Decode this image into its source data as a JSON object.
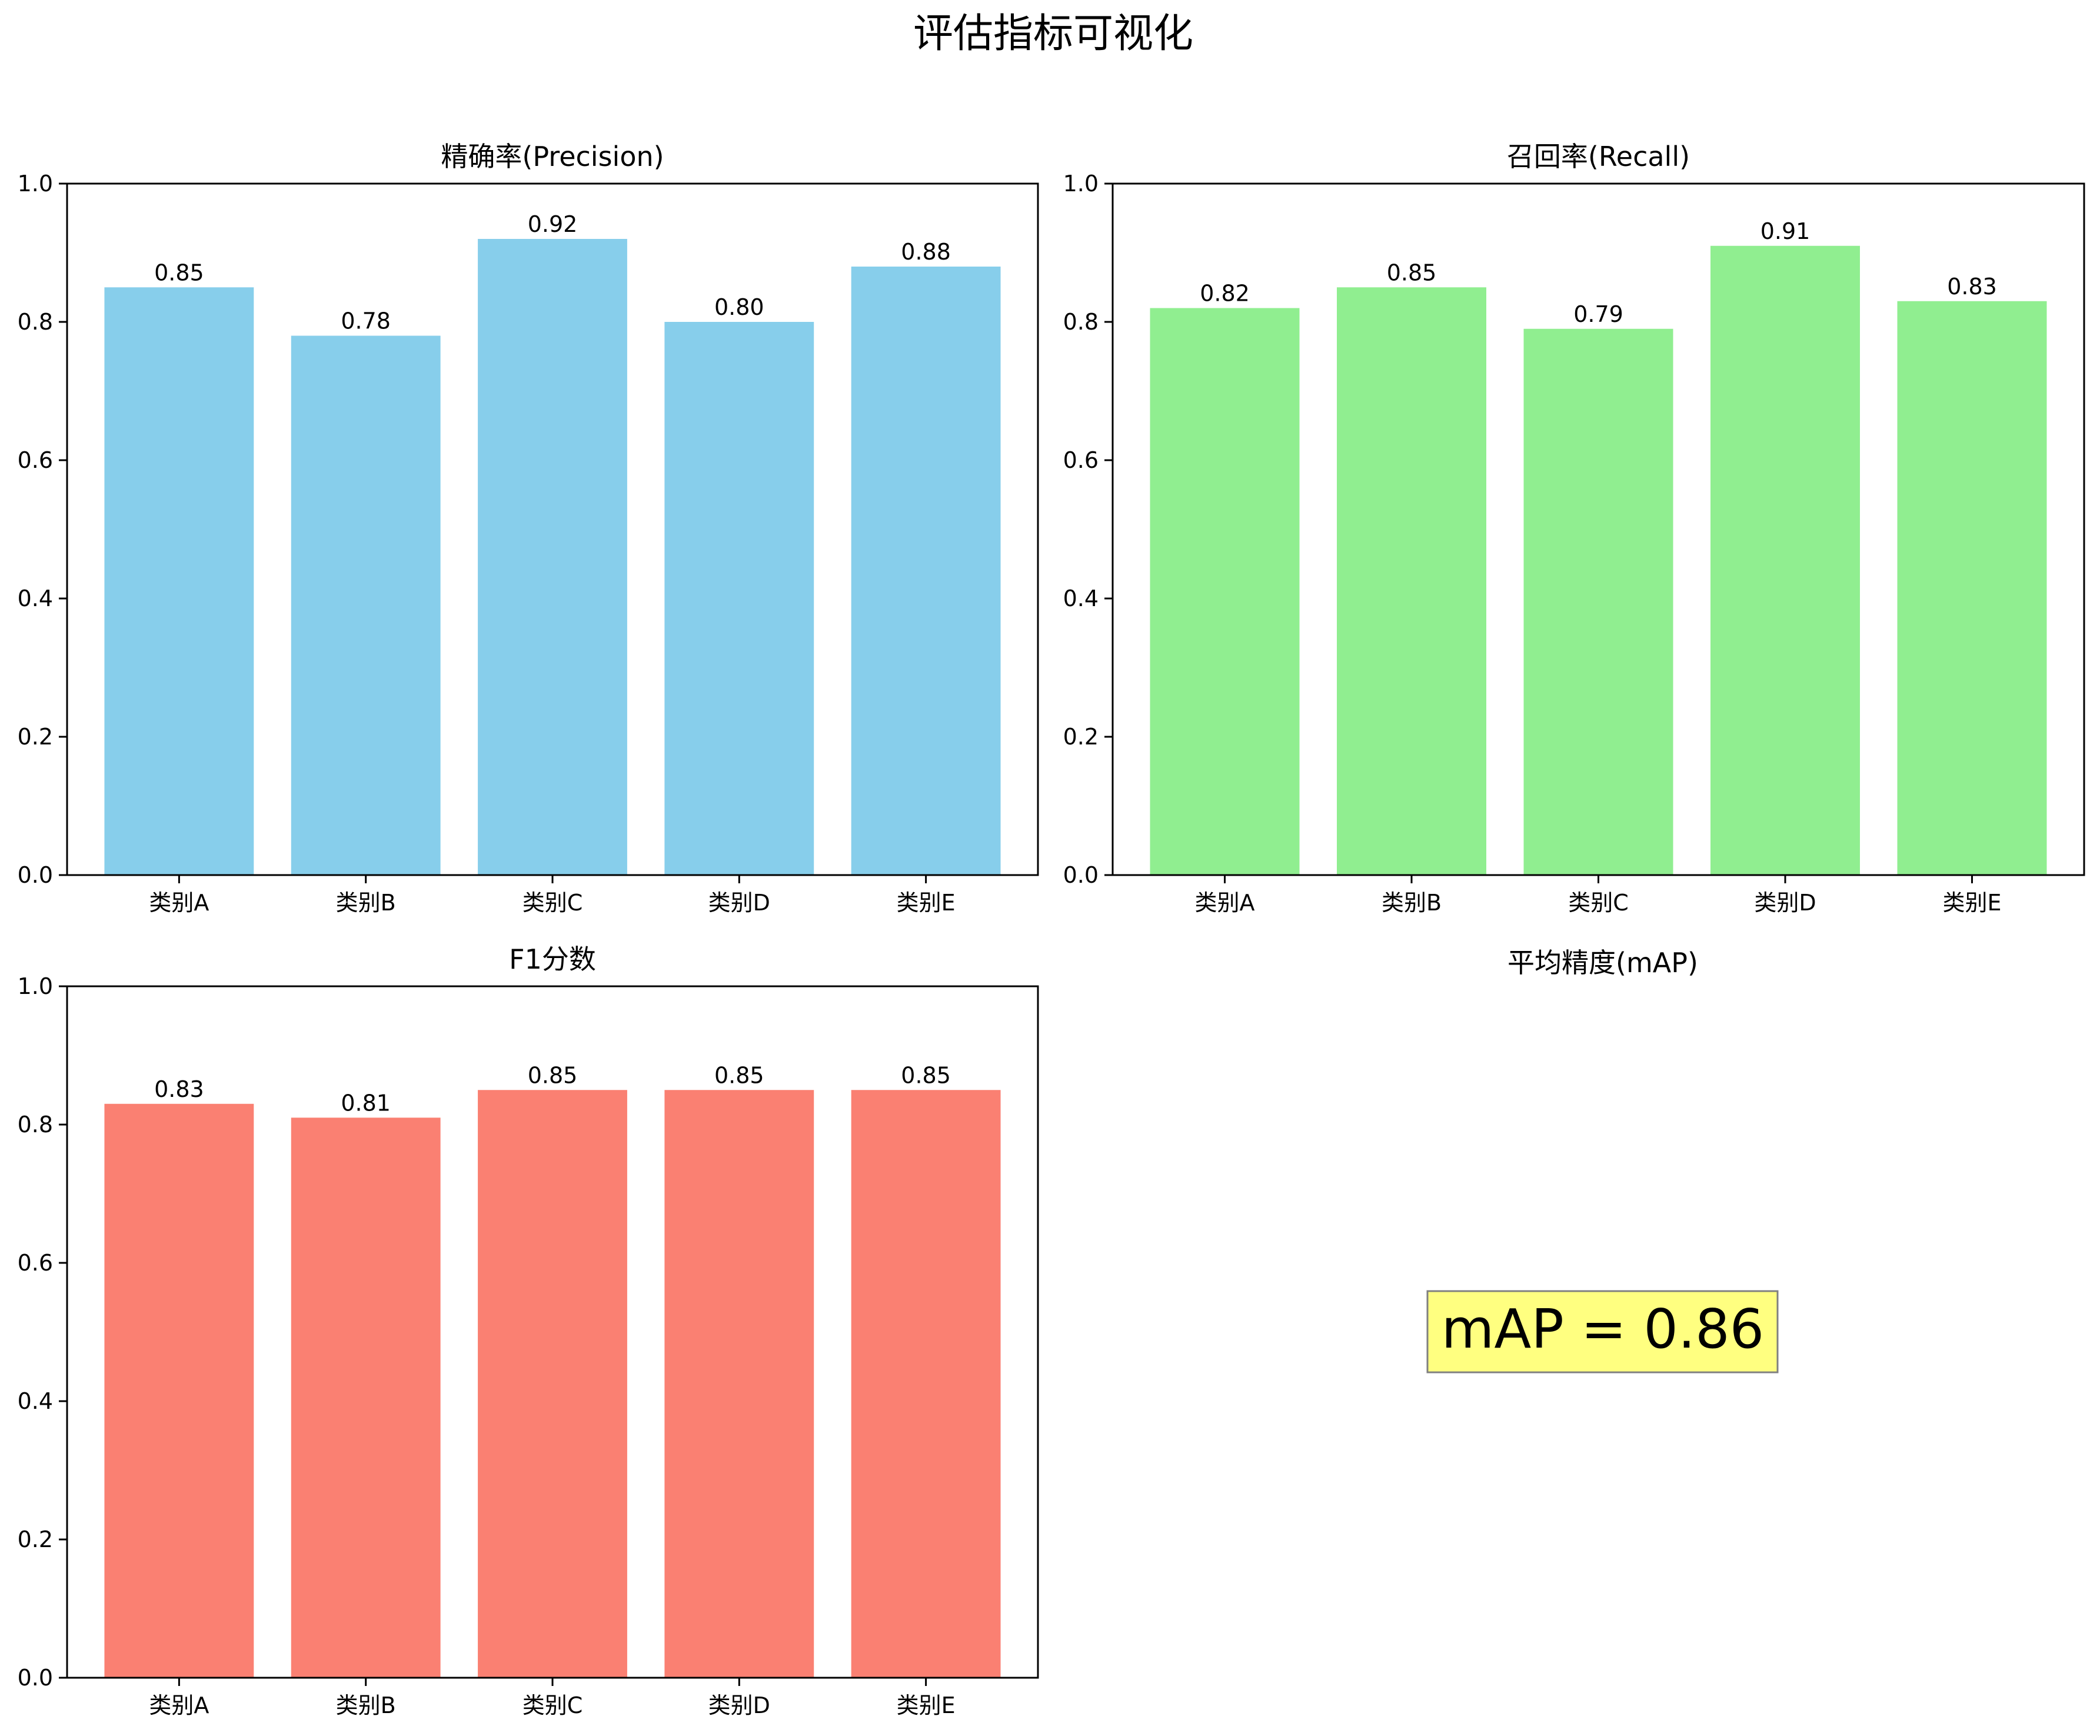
{
  "figure": {
    "suptitle": "评估指标可视化"
  },
  "chart_data": [
    {
      "type": "bar",
      "title": "精确率(Precision)",
      "xlabel": "",
      "ylabel": "",
      "categories": [
        "类别A",
        "类别B",
        "类别C",
        "类别D",
        "类别E"
      ],
      "values": [
        0.85,
        0.78,
        0.92,
        0.8,
        0.88
      ],
      "value_labels": [
        "0.85",
        "0.78",
        "0.92",
        "0.80",
        "0.88"
      ],
      "ylim": [
        0,
        1.0
      ],
      "yticks": [
        "0.0",
        "0.2",
        "0.4",
        "0.6",
        "0.8",
        "1.0"
      ],
      "color": "#87CEEB",
      "grid": false
    },
    {
      "type": "bar",
      "title": "召回率(Recall)",
      "xlabel": "",
      "ylabel": "",
      "categories": [
        "类别A",
        "类别B",
        "类别C",
        "类别D",
        "类别E"
      ],
      "values": [
        0.82,
        0.85,
        0.79,
        0.91,
        0.83
      ],
      "value_labels": [
        "0.82",
        "0.85",
        "0.79",
        "0.91",
        "0.83"
      ],
      "ylim": [
        0,
        1.0
      ],
      "yticks": [
        "0.0",
        "0.2",
        "0.4",
        "0.6",
        "0.8",
        "1.0"
      ],
      "color": "#90EE90",
      "grid": false
    },
    {
      "type": "bar",
      "title": "F1分数",
      "xlabel": "",
      "ylabel": "",
      "categories": [
        "类别A",
        "类别B",
        "类别C",
        "类别D",
        "类别E"
      ],
      "values": [
        0.83,
        0.81,
        0.85,
        0.85,
        0.85
      ],
      "value_labels": [
        "0.83",
        "0.81",
        "0.85",
        "0.85",
        "0.85"
      ],
      "ylim": [
        0,
        1.0
      ],
      "yticks": [
        "0.0",
        "0.2",
        "0.4",
        "0.6",
        "0.8",
        "1.0"
      ],
      "color": "#FA8072",
      "grid": false
    }
  ],
  "map_panel": {
    "title": "平均精度(mAP)",
    "text": "mAP = 0.86",
    "value": 0.86,
    "box_color": "#FFFF80"
  }
}
